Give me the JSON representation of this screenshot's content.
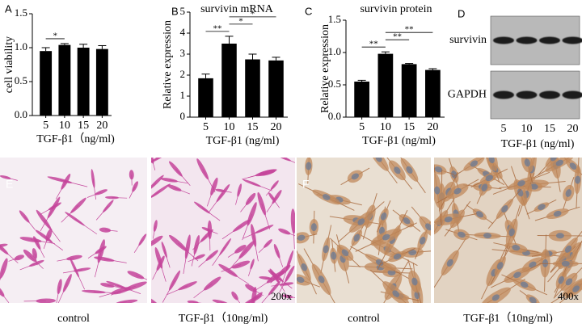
{
  "chart_data": [
    {
      "type": "bar",
      "label": "A",
      "ylabel": "cell viability",
      "xlabel": "TGF-β1（ng/ml)",
      "categories": [
        "5",
        "10",
        "15",
        "20"
      ],
      "values": [
        0.95,
        1.04,
        1.0,
        0.98
      ],
      "errors": [
        0.05,
        0.02,
        0.05,
        0.05
      ],
      "color": "#000000",
      "ylim": [
        0,
        1.5
      ],
      "yticks": [
        {
          "value": 0,
          "label": "0.0"
        },
        {
          "value": 0.5,
          "label": "0.5"
        },
        {
          "value": 1,
          "label": "1.0"
        },
        {
          "value": 1.5,
          "label": "1.5"
        }
      ],
      "annotations": [
        {
          "text": "*",
          "pair": [
            "5",
            "10"
          ]
        }
      ]
    },
    {
      "type": "bar",
      "label": "B",
      "title": "survivin mRNA",
      "ylabel": "Relative expression",
      "xlabel": "TGF-β1  (ng/ml)",
      "categories": [
        "5",
        "10",
        "15",
        "20"
      ],
      "values": [
        1.85,
        3.5,
        2.75,
        2.7
      ],
      "errors": [
        0.2,
        0.35,
        0.25,
        0.15
      ],
      "color": "#000000",
      "ylim": [
        0,
        5
      ],
      "yticks": [
        0,
        1,
        2,
        3,
        4,
        5
      ],
      "annotations": [
        {
          "text": "**",
          "pair": [
            "5",
            "10"
          ]
        },
        {
          "text": "*",
          "pair": [
            "10",
            "15"
          ]
        },
        {
          "text": "*",
          "pair": [
            "10",
            "20"
          ]
        }
      ]
    },
    {
      "type": "bar",
      "label": "C",
      "title": "survivin protein",
      "ylabel": "Relative expression",
      "xlabel": "TGF-β1  (ng/ml)",
      "categories": [
        "5",
        "10",
        "15",
        "20"
      ],
      "values": [
        0.55,
        0.98,
        0.82,
        0.73
      ],
      "errors": [
        0.02,
        0.03,
        0.01,
        0.02
      ],
      "color": "#000000",
      "ylim": [
        0,
        1.5
      ],
      "yticks": [
        {
          "value": 0,
          "label": "0.0"
        },
        {
          "value": 0.5,
          "label": "0.5"
        },
        {
          "value": 1,
          "label": "1.0"
        },
        {
          "value": 1.5,
          "label": "1.5"
        }
      ],
      "annotations": [
        {
          "text": "**",
          "pair": [
            "5",
            "10"
          ]
        },
        {
          "text": "**",
          "pair": [
            "10",
            "15"
          ]
        },
        {
          "text": "**",
          "pair": [
            "10",
            "20"
          ]
        }
      ]
    }
  ],
  "blot": {
    "label": "D",
    "rows": [
      "survivin",
      "GAPDH"
    ],
    "lanes": [
      "5",
      "10",
      "15",
      "20"
    ],
    "xlabel": "TGF-β1  (ng/ml)"
  },
  "micrographs": [
    {
      "label": "E",
      "captions": [
        "control",
        "TGF-β1（10ng/ml)"
      ],
      "magnification": "200x"
    },
    {
      "label": "F",
      "captions": [
        "control",
        "TGF-β1（10ng/ml)"
      ],
      "magnification": "400x"
    }
  ]
}
